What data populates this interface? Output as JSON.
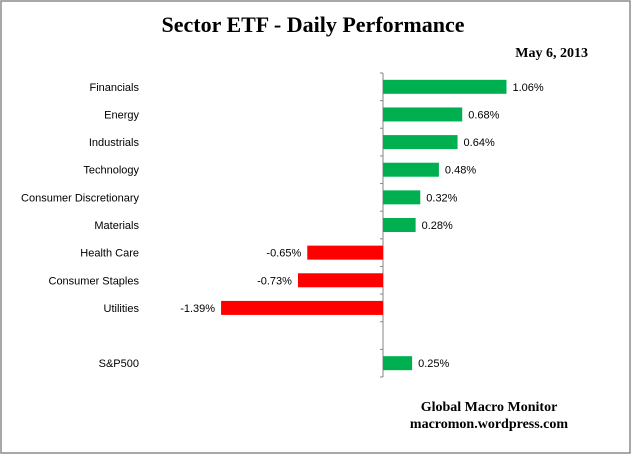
{
  "chart_data": {
    "type": "bar",
    "orientation": "horizontal",
    "title": "Sector ETF - Daily Performance",
    "subtitle": "May 6, 2013",
    "categories": [
      "Financials",
      "Energy",
      "Industrials",
      "Technology",
      "Consumer Discretionary",
      "Materials",
      "Health Care",
      "Consumer Staples",
      "Utilities",
      "",
      "S&P500"
    ],
    "values": [
      1.06,
      0.68,
      0.64,
      0.48,
      0.32,
      0.28,
      -0.65,
      -0.73,
      -1.39,
      null,
      0.25
    ],
    "data_labels": [
      "1.06%",
      "0.68%",
      "0.64%",
      "0.48%",
      "0.32%",
      "0.28%",
      "-0.65%",
      "-0.73%",
      "-1.39%",
      "",
      "0.25%"
    ],
    "xlabel": "",
    "ylabel": "",
    "xlim": [
      -1.39,
      1.06
    ],
    "grid": false,
    "colors": {
      "positive": "#00B050",
      "negative": "#FF0000"
    },
    "footer": [
      "Global Macro Monitor",
      "macromon.wordpress.com"
    ]
  }
}
